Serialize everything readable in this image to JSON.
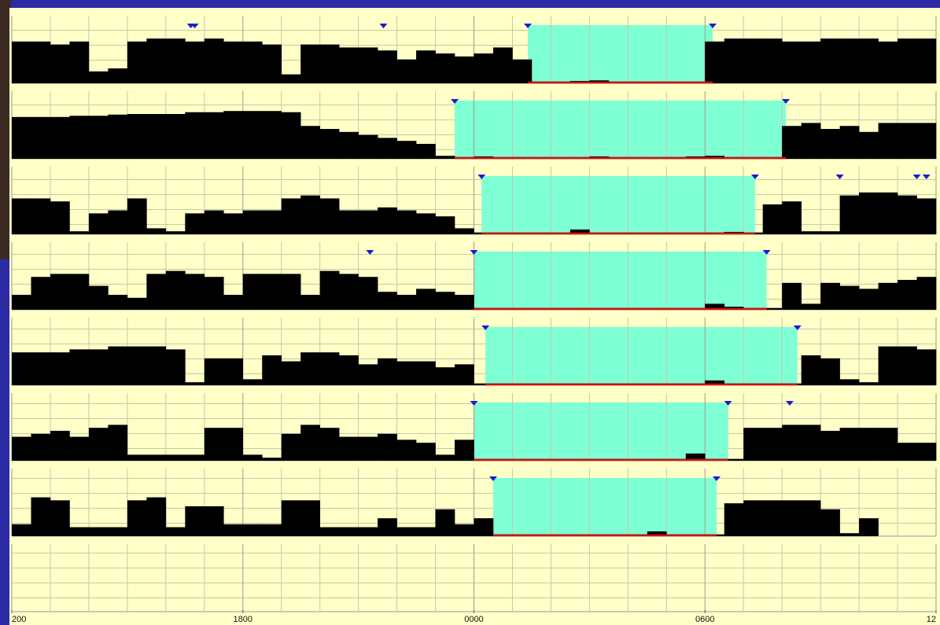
{
  "chart_data": {
    "type": "actogram",
    "xlim": [
      0,
      24
    ],
    "xticks": [
      {
        "value": 0,
        "label": "200"
      },
      {
        "value": 6,
        "label": "1800"
      },
      {
        "value": 12,
        "label": "0000"
      },
      {
        "value": 18,
        "label": "0600"
      },
      {
        "value": 24,
        "label": "12"
      }
    ],
    "xgrid": [
      1,
      2,
      3,
      4,
      5,
      7,
      8,
      9,
      10,
      11,
      13,
      14,
      15,
      16,
      17,
      19,
      20,
      21,
      22,
      23
    ],
    "ylim": [
      0,
      100
    ],
    "color": "#000000",
    "rest_color": "#7fffd4",
    "marker_color": "#1c1cd0",
    "rows": [
      {
        "values": [
          70,
          70,
          65,
          70,
          20,
          25,
          70,
          75,
          75,
          70,
          75,
          70,
          70,
          65,
          15,
          65,
          65,
          60,
          60,
          55,
          40,
          55,
          50,
          45,
          50,
          60,
          40,
          3,
          3,
          4,
          5,
          3,
          3,
          3,
          3,
          3,
          70,
          75,
          75,
          75,
          70,
          70,
          75,
          75,
          75,
          70,
          75,
          75
        ],
        "rest": [
          13.4,
          18.2
        ],
        "markers": [
          4.65,
          4.75,
          9.65,
          13.4,
          18.2
        ]
      },
      {
        "values": [
          70,
          70,
          70,
          72,
          72,
          74,
          75,
          75,
          75,
          78,
          78,
          80,
          80,
          80,
          78,
          55,
          50,
          45,
          40,
          35,
          30,
          25,
          5,
          3,
          4,
          3,
          3,
          3,
          3,
          3,
          4,
          3,
          3,
          3,
          3,
          4,
          5,
          3,
          3,
          3,
          55,
          60,
          50,
          55,
          45,
          60,
          60,
          60
        ],
        "rest": [
          11.5,
          20.1
        ],
        "markers": [
          11.5,
          20.1
        ]
      },
      {
        "values": [
          60,
          60,
          55,
          5,
          35,
          40,
          60,
          10,
          5,
          35,
          40,
          35,
          40,
          40,
          60,
          65,
          60,
          40,
          40,
          45,
          40,
          35,
          30,
          10,
          3,
          3,
          3,
          3,
          3,
          8,
          3,
          3,
          3,
          3,
          3,
          3,
          3,
          4,
          3,
          50,
          55,
          5,
          5,
          65,
          70,
          70,
          65,
          60
        ],
        "rest": [
          12.2,
          19.3
        ],
        "markers": [
          12.2,
          19.3,
          21.5,
          23.5,
          23.75
        ]
      },
      {
        "values": [
          25,
          55,
          60,
          60,
          40,
          25,
          20,
          60,
          65,
          60,
          55,
          25,
          60,
          60,
          60,
          25,
          65,
          60,
          55,
          30,
          25,
          35,
          30,
          25,
          3,
          3,
          3,
          3,
          3,
          3,
          3,
          3,
          3,
          3,
          3,
          3,
          10,
          5,
          3,
          3,
          45,
          10,
          45,
          40,
          35,
          45,
          50,
          55
        ],
        "rest": [
          12.0,
          19.6
        ],
        "markers": [
          9.3,
          12.0,
          19.6
        ]
      },
      {
        "values": [
          55,
          55,
          55,
          60,
          60,
          65,
          65,
          65,
          60,
          5,
          45,
          45,
          10,
          50,
          40,
          55,
          55,
          50,
          35,
          45,
          40,
          40,
          30,
          35,
          3,
          3,
          3,
          3,
          3,
          3,
          3,
          3,
          3,
          3,
          3,
          3,
          8,
          3,
          3,
          3,
          3,
          50,
          45,
          10,
          5,
          65,
          65,
          60
        ],
        "rest": [
          12.3,
          20.4
        ],
        "markers": [
          12.3,
          20.4
        ]
      },
      {
        "values": [
          40,
          45,
          50,
          40,
          55,
          60,
          10,
          10,
          10,
          10,
          55,
          55,
          10,
          5,
          45,
          60,
          55,
          40,
          40,
          45,
          35,
          30,
          10,
          35,
          3,
          3,
          3,
          3,
          3,
          3,
          3,
          3,
          3,
          3,
          3,
          12,
          3,
          3,
          55,
          55,
          60,
          60,
          50,
          55,
          55,
          55,
          30,
          30
        ],
        "rest": [
          12.0,
          18.6
        ],
        "markers": [
          12.0,
          18.6,
          20.2
        ]
      },
      {
        "values": [
          20,
          65,
          60,
          15,
          15,
          15,
          60,
          65,
          15,
          50,
          50,
          20,
          20,
          20,
          60,
          60,
          15,
          15,
          15,
          30,
          15,
          15,
          45,
          20,
          30,
          3,
          3,
          3,
          3,
          3,
          3,
          3,
          3,
          8,
          3,
          3,
          3,
          55,
          60,
          60,
          60,
          60,
          45,
          5,
          30,
          0,
          0,
          0
        ],
        "rest": [
          12.5,
          18.3
        ],
        "markers": [
          12.5,
          18.3
        ]
      },
      {
        "values": []
      }
    ]
  }
}
